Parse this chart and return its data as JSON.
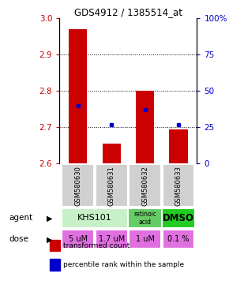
{
  "title": "GDS4912 / 1385514_at",
  "samples": [
    "GSM580630",
    "GSM580631",
    "GSM580632",
    "GSM580633"
  ],
  "bar_values": [
    2.97,
    2.655,
    2.8,
    2.695
  ],
  "bar_bottom": 2.6,
  "percentile_values": [
    40,
    27,
    37,
    27
  ],
  "ylim": [
    2.6,
    3.0
  ],
  "yticks": [
    2.6,
    2.7,
    2.8,
    2.9,
    3.0
  ],
  "percentile_ylim": [
    0,
    100
  ],
  "percentile_yticks": [
    0,
    25,
    50,
    75,
    100
  ],
  "percentile_labels": [
    "0",
    "25",
    "50",
    "75",
    "100%"
  ],
  "bar_color": "#cc0000",
  "percentile_color": "#0000cc",
  "agent_colors": [
    "#c8f0c8",
    "#66cc66"
  ],
  "dose_color": "#e070e0",
  "sample_bg": "#d0d0d0",
  "legend_bar_color": "#cc0000",
  "legend_dot_color": "#0000cc",
  "legend_bar_label": "transformed count",
  "legend_dot_label": "percentile rank within the sample",
  "agent_texts": [
    "KHS101",
    "retinoic\nacid",
    "DMSO"
  ],
  "dose_labels": [
    "5 uM",
    "1.7 uM",
    "1 uM",
    "0.1 %"
  ]
}
